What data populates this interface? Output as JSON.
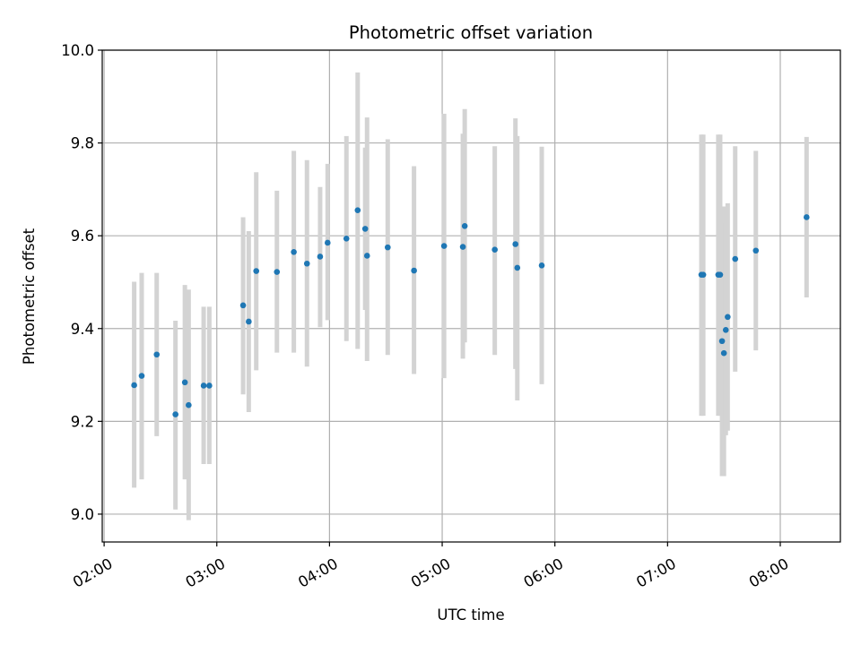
{
  "chart_data": {
    "type": "scatter",
    "title": "Photometric offset variation",
    "xlabel": "UTC time",
    "ylabel": "Photometric offset",
    "xlim": [
      "01:59",
      "08:32"
    ],
    "ylim": [
      8.94,
      10.0
    ],
    "x_ticks": [
      "02:00",
      "03:00",
      "04:00",
      "05:00",
      "06:00",
      "07:00",
      "08:00"
    ],
    "y_ticks": [
      "9.0",
      "9.2",
      "9.4",
      "9.6",
      "9.8",
      "10.0"
    ],
    "grid": true,
    "marker_color": "#1f77b4",
    "errorbar_color": "#d3d3d3",
    "series": [
      {
        "points": [
          {
            "x": "02:16",
            "y": 9.278,
            "ylo": 9.057,
            "yhi": 9.501
          },
          {
            "x": "02:20",
            "y": 9.298,
            "ylo": 9.075,
            "yhi": 9.52
          },
          {
            "x": "02:28",
            "y": 9.344,
            "ylo": 9.168,
            "yhi": 9.52
          },
          {
            "x": "02:38",
            "y": 9.215,
            "ylo": 9.01,
            "yhi": 9.417
          },
          {
            "x": "02:43",
            "y": 9.284,
            "ylo": 9.075,
            "yhi": 9.494
          },
          {
            "x": "02:45",
            "y": 9.235,
            "ylo": 8.987,
            "yhi": 9.484
          },
          {
            "x": "02:53",
            "y": 9.277,
            "ylo": 9.108,
            "yhi": 9.447
          },
          {
            "x": "02:56",
            "y": 9.277,
            "ylo": 9.108,
            "yhi": 9.447
          },
          {
            "x": "03:14",
            "y": 9.45,
            "ylo": 9.258,
            "yhi": 9.64
          },
          {
            "x": "03:17",
            "y": 9.415,
            "ylo": 9.22,
            "yhi": 9.61
          },
          {
            "x": "03:21",
            "y": 9.524,
            "ylo": 9.31,
            "yhi": 9.737
          },
          {
            "x": "03:32",
            "y": 9.522,
            "ylo": 9.348,
            "yhi": 9.697
          },
          {
            "x": "03:41",
            "y": 9.565,
            "ylo": 9.348,
            "yhi": 9.783
          },
          {
            "x": "03:48",
            "y": 9.54,
            "ylo": 9.318,
            "yhi": 9.763
          },
          {
            "x": "03:55",
            "y": 9.555,
            "ylo": 9.403,
            "yhi": 9.705
          },
          {
            "x": "03:59",
            "y": 9.585,
            "ylo": 9.418,
            "yhi": 9.755
          },
          {
            "x": "04:09",
            "y": 9.594,
            "ylo": 9.373,
            "yhi": 9.815
          },
          {
            "x": "04:15",
            "y": 9.655,
            "ylo": 9.356,
            "yhi": 9.952
          },
          {
            "x": "04:19",
            "y": 9.615,
            "ylo": 9.44,
            "yhi": 9.79
          },
          {
            "x": "04:20",
            "y": 9.557,
            "ylo": 9.33,
            "yhi": 9.855
          },
          {
            "x": "04:31",
            "y": 9.575,
            "ylo": 9.343,
            "yhi": 9.808
          },
          {
            "x": "04:45",
            "y": 9.525,
            "ylo": 9.302,
            "yhi": 9.75
          },
          {
            "x": "05:01",
            "y": 9.578,
            "ylo": 9.293,
            "yhi": 9.863
          },
          {
            "x": "05:11",
            "y": 9.576,
            "ylo": 9.335,
            "yhi": 9.82
          },
          {
            "x": "05:12",
            "y": 9.621,
            "ylo": 9.37,
            "yhi": 9.873
          },
          {
            "x": "05:28",
            "y": 9.57,
            "ylo": 9.343,
            "yhi": 9.793
          },
          {
            "x": "05:39",
            "y": 9.582,
            "ylo": 9.313,
            "yhi": 9.853
          },
          {
            "x": "05:40",
            "y": 9.531,
            "ylo": 9.245,
            "yhi": 9.815
          },
          {
            "x": "05:53",
            "y": 9.536,
            "ylo": 9.28,
            "yhi": 9.792
          },
          {
            "x": "07:18",
            "y": 9.516,
            "ylo": 9.212,
            "yhi": 9.818
          },
          {
            "x": "07:19",
            "y": 9.516,
            "ylo": 9.212,
            "yhi": 9.818
          },
          {
            "x": "07:27",
            "y": 9.516,
            "ylo": 9.212,
            "yhi": 9.818
          },
          {
            "x": "07:28",
            "y": 9.516,
            "ylo": 9.212,
            "yhi": 9.818
          },
          {
            "x": "07:29",
            "y": 9.373,
            "ylo": 9.082,
            "yhi": 9.663
          },
          {
            "x": "07:30",
            "y": 9.347,
            "ylo": 9.082,
            "yhi": 9.663
          },
          {
            "x": "07:31",
            "y": 9.397,
            "ylo": 9.17,
            "yhi": 9.628
          },
          {
            "x": "07:32",
            "y": 9.425,
            "ylo": 9.18,
            "yhi": 9.67
          },
          {
            "x": "07:36",
            "y": 9.55,
            "ylo": 9.307,
            "yhi": 9.793
          },
          {
            "x": "07:47",
            "y": 9.568,
            "ylo": 9.353,
            "yhi": 9.783
          },
          {
            "x": "08:14",
            "y": 9.64,
            "ylo": 9.467,
            "yhi": 9.813
          }
        ]
      }
    ]
  }
}
